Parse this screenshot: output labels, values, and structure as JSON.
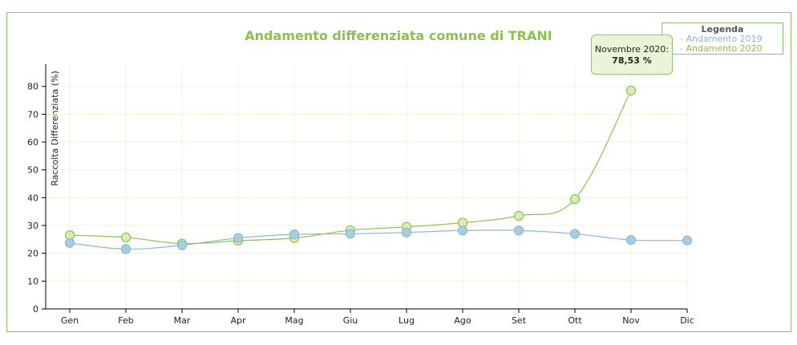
{
  "chart_data": {
    "type": "line",
    "title": "Andamento differenziata comune di TRANI",
    "ylabel": "Raccolta Differenziata (%)",
    "xlabel": "",
    "ylim": [
      0,
      88
    ],
    "yticks": [
      0,
      10,
      20,
      30,
      40,
      50,
      60,
      70,
      80
    ],
    "categories": [
      "Gen",
      "Feb",
      "Mar",
      "Apr",
      "Mag",
      "Giu",
      "Lug",
      "Ago",
      "Set",
      "Ott",
      "Nov",
      "Dic"
    ],
    "grid": true,
    "legend_placement": "top-right",
    "series": [
      {
        "name": "- Andamento 2019",
        "color": "#8fb6d1",
        "marker_fill": "#a9cde0",
        "values": [
          23.7,
          21.5,
          22.9,
          25.5,
          26.8,
          27.0,
          27.5,
          28.2,
          28.2,
          27.0,
          24.8,
          24.6
        ]
      },
      {
        "name": "- Andamento 2020",
        "color": "#8dc14f",
        "marker_fill": "#d9eeb4",
        "values": [
          26.5,
          25.7,
          23.5,
          24.5,
          25.5,
          28.3,
          29.5,
          31.0,
          33.5,
          39.5,
          78.53,
          null
        ]
      }
    ]
  },
  "legend": {
    "title": "Legenda"
  },
  "tooltip": {
    "label": "Novembre 2020:",
    "value": "78,53 %"
  }
}
